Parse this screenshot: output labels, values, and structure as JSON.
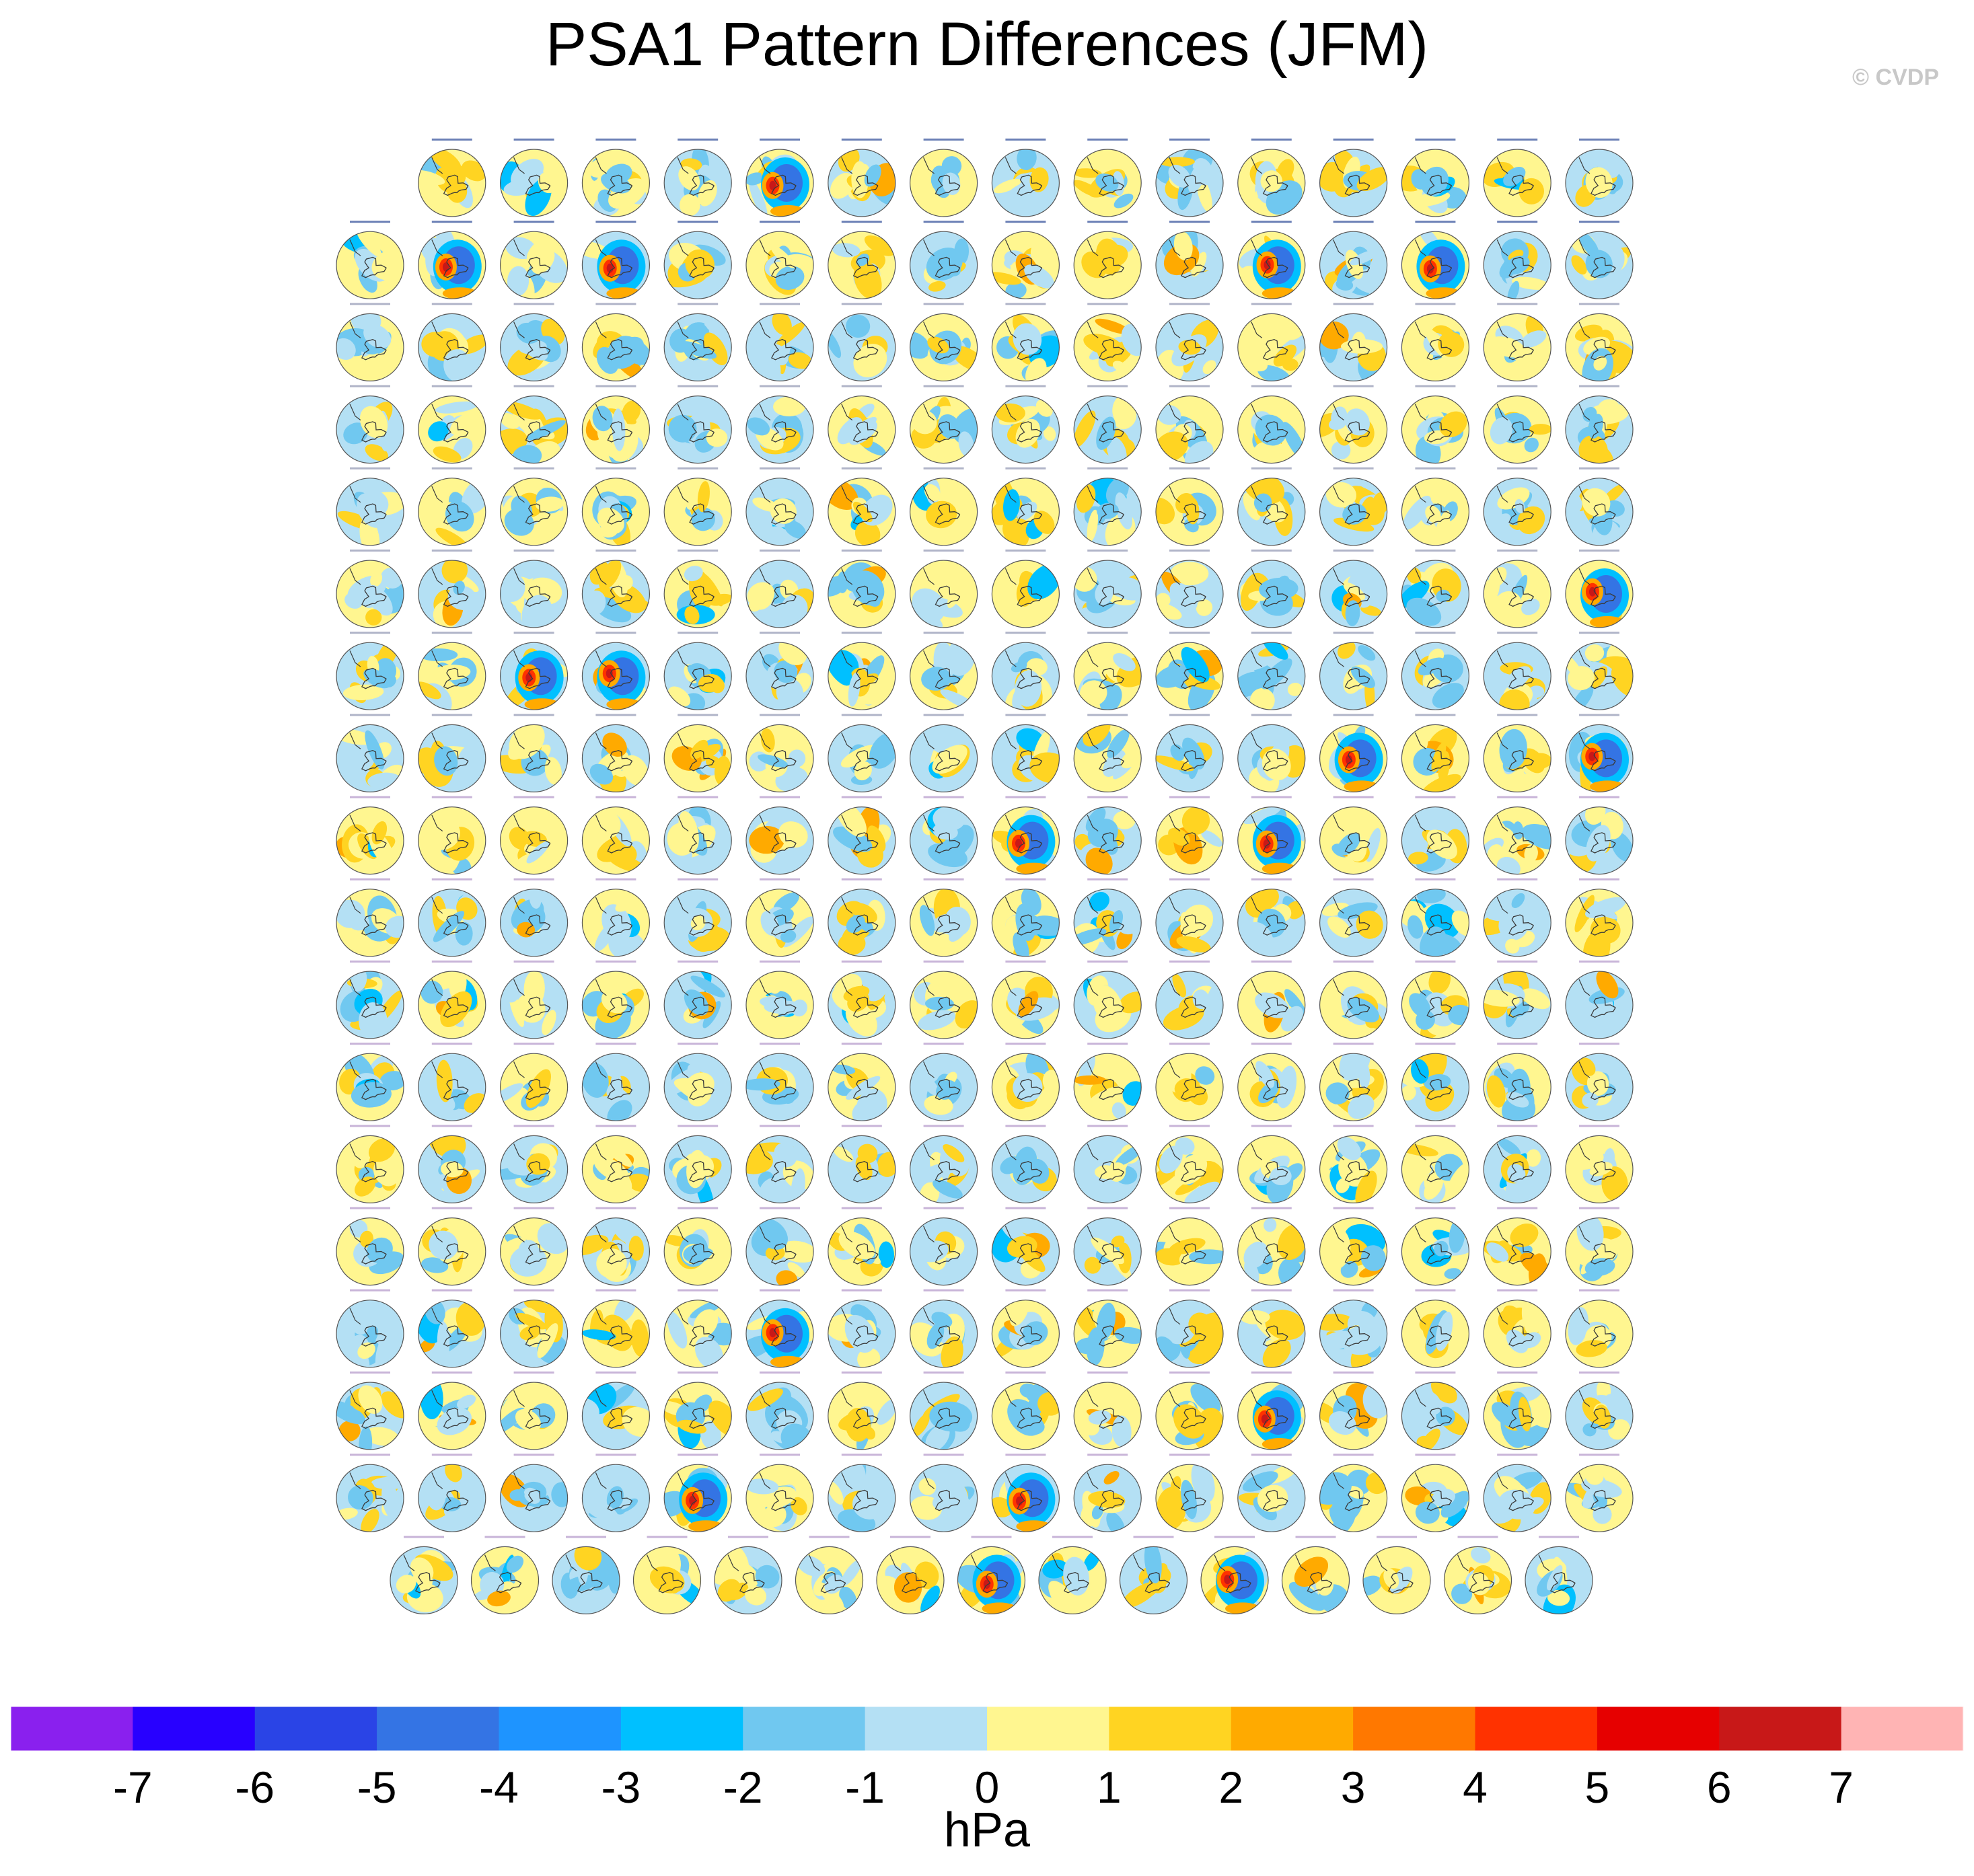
{
  "title": "PSA1 Pattern Differences (JFM)",
  "watermark": "© CVDP",
  "chart_data": {
    "type": "heatmap",
    "title": "PSA1 Pattern Differences (JFM)",
    "description_kind": "panel grid of southern-hemisphere polar stereographic maps",
    "grid": {
      "rows": 18,
      "panels_per_row": [
        15,
        16,
        16,
        16,
        16,
        16,
        16,
        16,
        16,
        16,
        16,
        16,
        16,
        16,
        16,
        16,
        16,
        15
      ],
      "total_panels": 286
    },
    "colorbar": {
      "units": "hPa",
      "tick_labels": [
        "-7",
        "-6",
        "-5",
        "-4",
        "-3",
        "-2",
        "-1",
        "0",
        "1",
        "2",
        "3",
        "4",
        "5",
        "6",
        "7"
      ],
      "levels": [
        -7,
        -6,
        -5,
        -4,
        -3,
        -2,
        -1,
        0,
        1,
        2,
        3,
        4,
        5,
        6,
        7
      ],
      "colors": [
        "#8a20ee",
        "#2800ff",
        "#2a44e6",
        "#3474e4",
        "#1e94ff",
        "#00c0ff",
        "#70c8f0",
        "#b4e0f4",
        "#fff690",
        "#ffd422",
        "#ffaa00",
        "#ff7800",
        "#ff3200",
        "#e60000",
        "#c81818",
        "#ffb4b4"
      ]
    },
    "strong_anomaly_panels": [
      {
        "row": 0,
        "col": 4,
        "sign": "positive"
      },
      {
        "row": 1,
        "col": 1,
        "sign": "negative"
      },
      {
        "row": 1,
        "col": 3,
        "sign": "positive"
      },
      {
        "row": 1,
        "col": 11,
        "sign": "positive"
      },
      {
        "row": 1,
        "col": 13,
        "sign": "negative"
      },
      {
        "row": 5,
        "col": 15,
        "sign": "positive"
      },
      {
        "row": 6,
        "col": 2,
        "sign": "positive"
      },
      {
        "row": 6,
        "col": 3,
        "sign": "positive"
      },
      {
        "row": 7,
        "col": 12,
        "sign": "positive"
      },
      {
        "row": 7,
        "col": 15,
        "sign": "positive"
      },
      {
        "row": 8,
        "col": 8,
        "sign": "positive"
      },
      {
        "row": 8,
        "col": 11,
        "sign": "positive"
      },
      {
        "row": 14,
        "col": 5,
        "sign": "positive"
      },
      {
        "row": 15,
        "col": 11,
        "sign": "positive"
      },
      {
        "row": 16,
        "col": 4,
        "sign": "positive"
      },
      {
        "row": 16,
        "col": 8,
        "sign": "positive"
      },
      {
        "row": 17,
        "col": 7,
        "sign": "positive"
      },
      {
        "row": 17,
        "col": 10,
        "sign": "positive"
      }
    ]
  }
}
